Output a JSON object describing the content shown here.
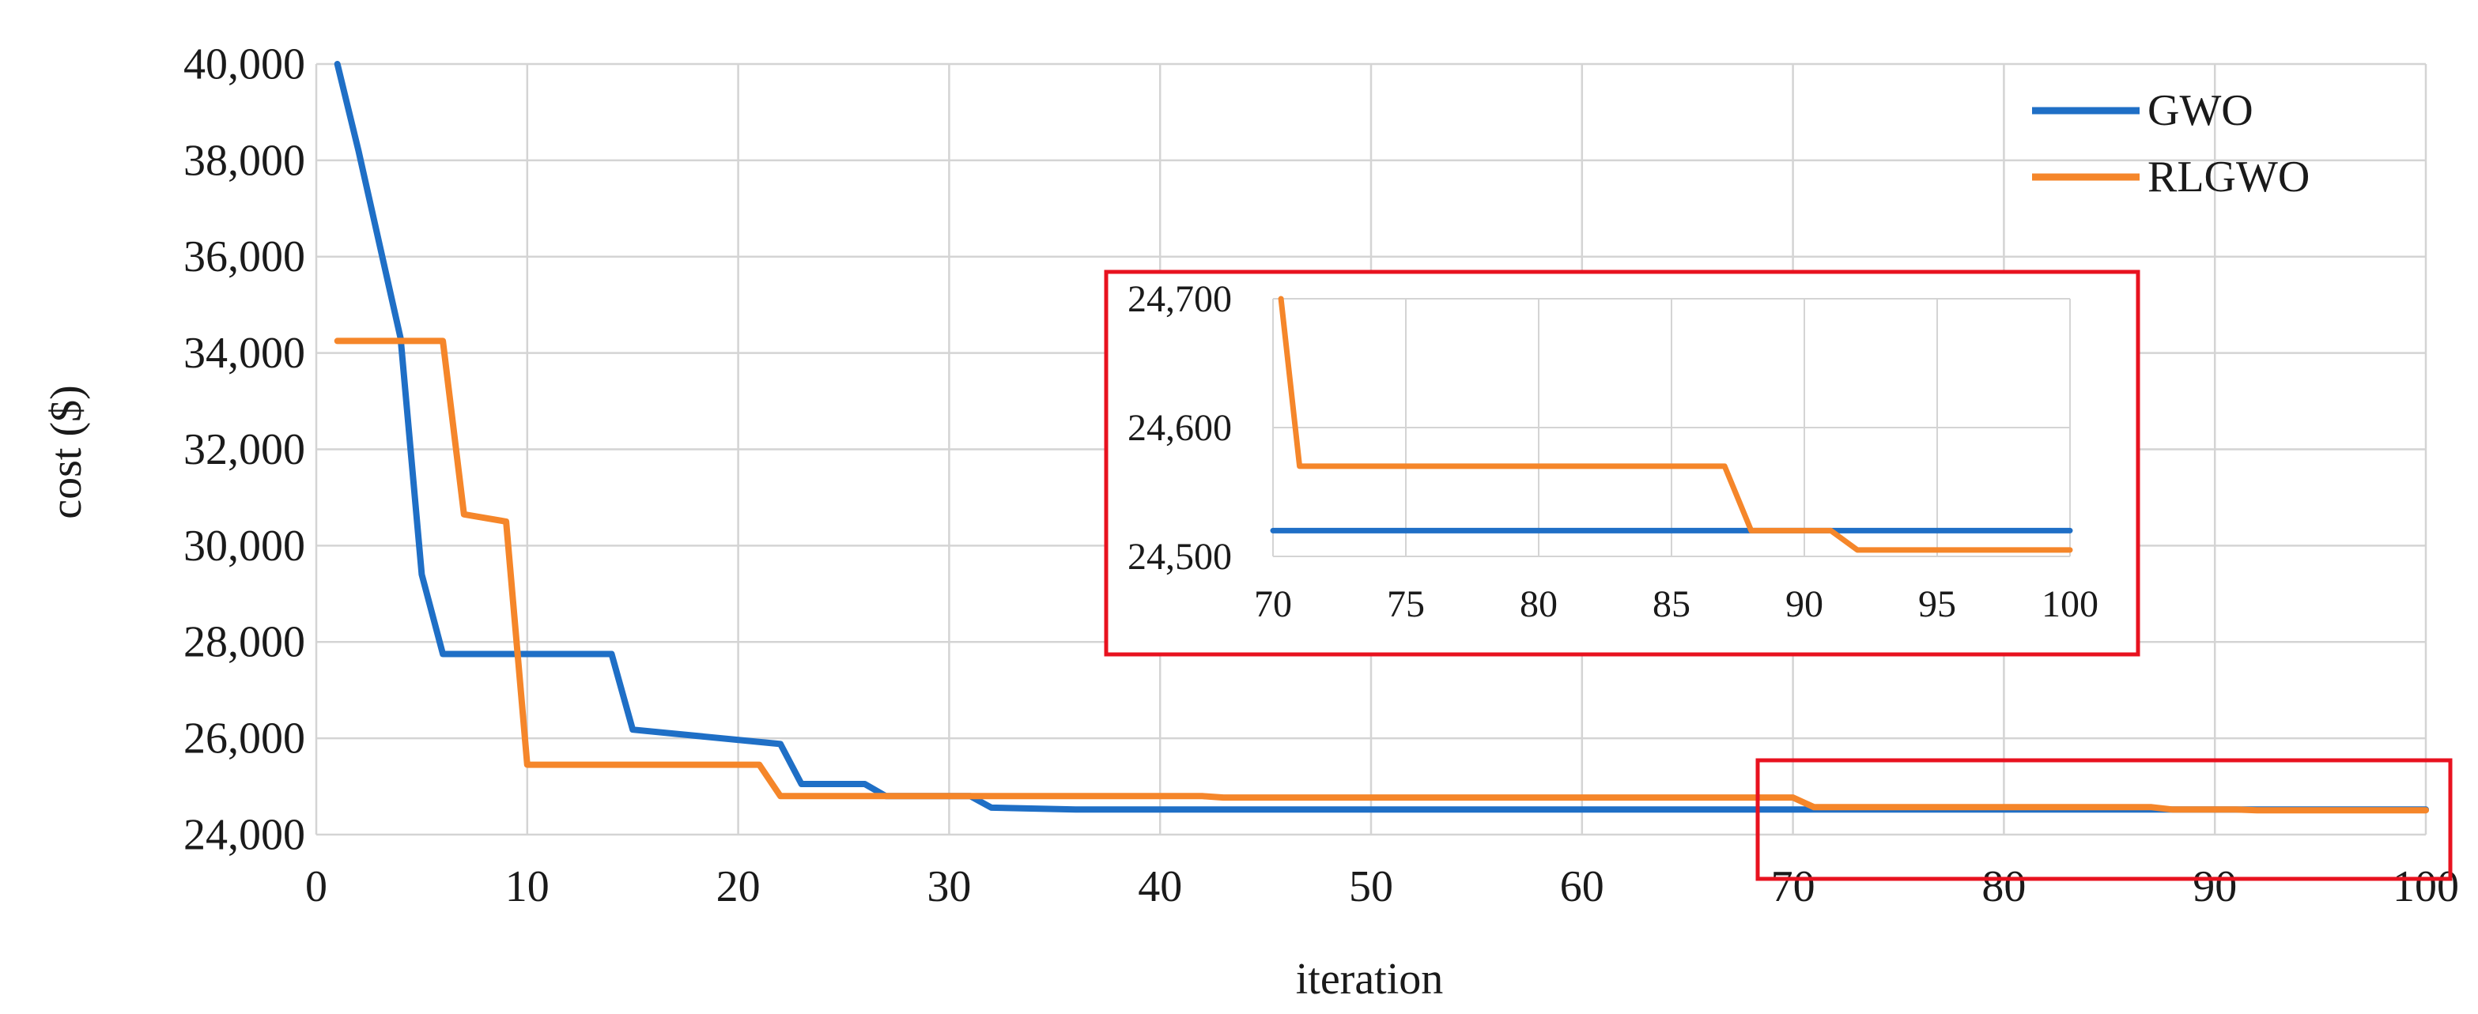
{
  "chart_data": [
    {
      "type": "line",
      "xlabel": "iteration",
      "ylabel": "cost ($)",
      "xlim": [
        0,
        100
      ],
      "ylim": [
        24000,
        40000
      ],
      "xticks": [
        "0",
        "10",
        "20",
        "30",
        "40",
        "50",
        "60",
        "70",
        "80",
        "90",
        "100"
      ],
      "yticks": [
        "24,000",
        "26,000",
        "28,000",
        "30,000",
        "32,000",
        "34,000",
        "36,000",
        "38,000",
        "40,000"
      ],
      "grid": true,
      "legend_position": "top-right",
      "series": [
        {
          "name": "GWO",
          "color": "#1f6fc6",
          "x": [
            1,
            2,
            4,
            5,
            6,
            14,
            15,
            22,
            23,
            26,
            27,
            31,
            32,
            36,
            100
          ],
          "y": [
            40000,
            38200,
            34300,
            29400,
            27750,
            27750,
            26180,
            25880,
            25050,
            25050,
            24800,
            24800,
            24560,
            24520,
            24520
          ]
        },
        {
          "name": "RLGWO",
          "color": "#f5862a",
          "x": [
            1,
            6,
            7,
            9,
            10,
            21,
            22,
            42,
            43,
            70,
            71,
            87,
            88,
            91,
            92,
            100
          ],
          "y": [
            34250,
            34250,
            30650,
            30500,
            25450,
            25450,
            24800,
            24800,
            24770,
            24770,
            24570,
            24570,
            24520,
            24520,
            24505,
            24505
          ]
        }
      ]
    },
    {
      "type": "line",
      "title": "",
      "xlim": [
        70,
        100
      ],
      "ylim": [
        24500,
        24700
      ],
      "xticks": [
        "70",
        "75",
        "80",
        "85",
        "90",
        "95",
        "100"
      ],
      "yticks": [
        "24,500",
        "24,600",
        "24,700"
      ],
      "grid": true,
      "series": [
        {
          "color": "#1f6fc6",
          "x": [
            70,
            100
          ],
          "y": [
            24520,
            24520
          ]
        },
        {
          "color": "#f5862a",
          "x": [
            70.3,
            71,
            87,
            88,
            91,
            92,
            100
          ],
          "y": [
            24700,
            24570,
            24570,
            24520,
            24520,
            24505,
            24505
          ]
        }
      ]
    }
  ],
  "highlight_color": "#e8121f"
}
